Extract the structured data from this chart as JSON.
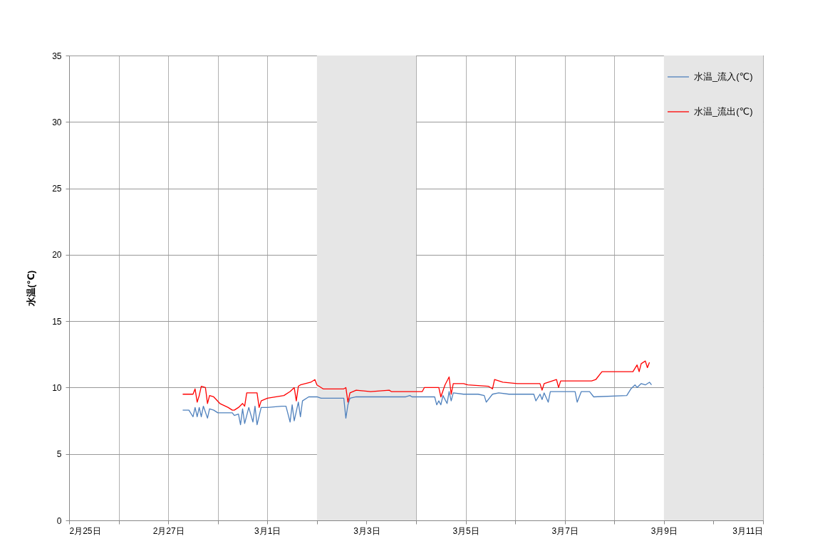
{
  "chart_data": {
    "type": "line",
    "ylabel": "水温(℃)",
    "xlim": [
      "--02-25",
      "--03-11"
    ],
    "xticks": [
      {
        "value": "--02-25",
        "label": "2月25日"
      },
      {
        "value": "--02-26",
        "label": null
      },
      {
        "value": "--02-27",
        "label": "2月27日"
      },
      {
        "value": "--02-28",
        "label": null
      },
      {
        "value": "--03-01",
        "label": "3月1日"
      },
      {
        "value": "--03-02",
        "label": null
      },
      {
        "value": "--03-03",
        "label": "3月3日"
      },
      {
        "value": "--03-04",
        "label": null
      },
      {
        "value": "--03-05",
        "label": "3月5日"
      },
      {
        "value": "--03-06",
        "label": null
      },
      {
        "value": "--03-07",
        "label": "3月7日"
      },
      {
        "value": "--03-08",
        "label": null
      },
      {
        "value": "--03-09",
        "label": "3月9日"
      },
      {
        "value": "--03-10",
        "label": null
      },
      {
        "value": "--03-11",
        "label": "3月11日"
      }
    ],
    "ylim": [
      0,
      35
    ],
    "yticks": [
      0,
      5,
      10,
      15,
      20,
      25,
      30,
      35
    ],
    "grid": true,
    "legend": "top right",
    "bands": [
      {
        "axis": "x",
        "from": "--03-02",
        "to": "--03-04",
        "color": "#e6e6e6"
      },
      {
        "axis": "x",
        "from": "--03-09",
        "to": "--03-11",
        "color": "#e6e6e6"
      }
    ],
    "series": [
      {
        "name": "水温_流入(℃)",
        "color": "#4f81bd",
        "x": [
          "--02-27T07:00",
          "--02-27T10:00",
          "--02-27T12:00",
          "--02-27T13:00",
          "--02-27T14:00",
          "--02-27T15:00",
          "--02-27T16:00",
          "--02-27T17:00",
          "--02-27T19:00",
          "--02-27T20:00",
          "--02-27T22:00",
          "--02-28T00:00",
          "--02-28T07:00",
          "--02-28T08:00",
          "--02-28T10:00",
          "--02-28T11:00",
          "--02-28T12:00",
          "--02-28T13:00",
          "--02-28T15:00",
          "--02-28T17:00",
          "--02-28T18:00",
          "--02-28T19:00",
          "--02-28T21:00",
          "--03-01T00:00",
          "--03-01T07:00",
          "--03-01T09:00",
          "--03-01T11:00",
          "--03-01T12:00",
          "--03-01T13:00",
          "--03-01T15:00",
          "--03-01T16:00",
          "--03-01T17:00",
          "--03-01T20:00",
          "--03-02T00:00",
          "--03-02T02:00",
          "--03-02T13:00",
          "--03-02T14:00",
          "--03-02T15:00",
          "--03-02T16:00",
          "--03-02T19:00",
          "--03-03T19:00",
          "--03-03T21:00",
          "--03-03T22:00",
          "--03-04T09:00",
          "--03-04T10:00",
          "--03-04T11:00",
          "--03-04T12:00",
          "--03-04T13:00",
          "--03-04T15:00",
          "--03-04T16:00",
          "--03-04T17:00",
          "--03-04T18:00",
          "--03-04T23:00",
          "--03-05T06:00",
          "--03-05T09:00",
          "--03-05T10:00",
          "--03-05T13:00",
          "--03-05T16:00",
          "--03-05T21:00",
          "--03-06T09:00",
          "--03-06T10:00",
          "--03-06T12:00",
          "--03-06T13:00",
          "--03-06T14:00",
          "--03-06T16:00",
          "--03-06T17:00",
          "--03-07T05:00",
          "--03-07T06:00",
          "--03-07T08:00",
          "--03-07T12:00",
          "--03-07T14:00",
          "--03-08T06:00",
          "--03-08T08:00",
          "--03-08T10:00",
          "--03-08T11:00",
          "--03-08T13:00",
          "--03-08T15:00",
          "--03-08T17:00",
          "--03-08T18:00"
        ],
        "values": [
          8.3,
          8.3,
          7.8,
          8.5,
          7.8,
          8.5,
          7.8,
          8.6,
          7.7,
          8.4,
          8.3,
          8.1,
          8.1,
          7.9,
          8.0,
          7.2,
          8.4,
          7.3,
          8.5,
          7.4,
          8.6,
          7.2,
          8.5,
          8.5,
          8.6,
          8.6,
          7.4,
          8.7,
          7.5,
          8.9,
          7.8,
          9.0,
          9.3,
          9.3,
          9.2,
          9.2,
          7.7,
          8.7,
          9.2,
          9.3,
          9.3,
          9.4,
          9.3,
          9.3,
          8.7,
          9.0,
          8.7,
          9.4,
          8.8,
          9.7,
          9.0,
          9.6,
          9.5,
          9.5,
          9.4,
          8.9,
          9.5,
          9.6,
          9.5,
          9.5,
          9.0,
          9.5,
          9.1,
          9.6,
          8.9,
          9.7,
          9.7,
          8.9,
          9.7,
          9.7,
          9.3,
          9.4,
          9.9,
          10.2,
          10.0,
          10.3,
          10.2,
          10.4,
          10.2
        ]
      },
      {
        "name": "水温_流出(℃)",
        "color": "#ff0000",
        "x": [
          "--02-27T07:00",
          "--02-27T12:00",
          "--02-27T13:00",
          "--02-27T14:00",
          "--02-27T15:00",
          "--02-27T16:00",
          "--02-27T18:00",
          "--02-27T19:00",
          "--02-27T20:00",
          "--02-27T22:00",
          "--02-28T01:00",
          "--02-28T05:00",
          "--02-28T07:00",
          "--02-28T08:00",
          "--02-28T10:00",
          "--02-28T12:00",
          "--02-28T13:00",
          "--02-28T14:00",
          "--02-28T19:00",
          "--02-28T20:00",
          "--02-28T21:00",
          "--03-01T00:00",
          "--03-01T08:00",
          "--03-01T11:00",
          "--03-01T13:00",
          "--03-01T14:00",
          "--03-01T15:00",
          "--03-01T16:00",
          "--03-01T21:00",
          "--03-01T23:00",
          "--03-02T00:00",
          "--03-02T03:00",
          "--03-02T13:00",
          "--03-02T14:00",
          "--03-02T15:00",
          "--03-02T16:00",
          "--03-02T19:00",
          "--03-03T02:00",
          "--03-03T11:00",
          "--03-03T12:00",
          "--03-04T03:00",
          "--03-04T04:00",
          "--03-04T11:00",
          "--03-04T12:00",
          "--03-04T14:00",
          "--03-04T16:00",
          "--03-04T17:00",
          "--03-04T18:00",
          "--03-04T23:00",
          "--03-05T01:00",
          "--03-05T11:00",
          "--03-05T13:00",
          "--03-05T14:00",
          "--03-05T18:00",
          "--03-06T01:00",
          "--03-06T12:00",
          "--03-06T13:00",
          "--03-06T14:00",
          "--03-06T20:00",
          "--03-06T21:00",
          "--03-06T22:00",
          "--03-07T13:00",
          "--03-07T15:00",
          "--03-07T18:00",
          "--03-08T09:00",
          "--03-08T11:00",
          "--03-08T12:00",
          "--03-08T13:00",
          "--03-08T15:00",
          "--03-08T16:00",
          "--03-08T17:00"
        ],
        "values": [
          9.5,
          9.5,
          9.9,
          8.9,
          9.4,
          10.1,
          10.0,
          8.8,
          9.4,
          9.3,
          8.8,
          8.5,
          8.3,
          8.3,
          8.5,
          8.8,
          8.6,
          9.6,
          9.6,
          8.5,
          9.0,
          9.2,
          9.4,
          9.7,
          10.0,
          9.0,
          10.1,
          10.2,
          10.4,
          10.6,
          10.2,
          9.9,
          9.9,
          10.0,
          8.9,
          9.6,
          9.8,
          9.7,
          9.8,
          9.7,
          9.7,
          10.0,
          10.0,
          9.3,
          10.2,
          10.8,
          9.5,
          10.3,
          10.3,
          10.2,
          10.1,
          9.9,
          10.6,
          10.4,
          10.3,
          10.3,
          9.8,
          10.3,
          10.6,
          10.0,
          10.5,
          10.5,
          10.6,
          11.2,
          11.2,
          11.7,
          11.2,
          11.8,
          12.0,
          11.5,
          11.9
        ]
      }
    ]
  }
}
